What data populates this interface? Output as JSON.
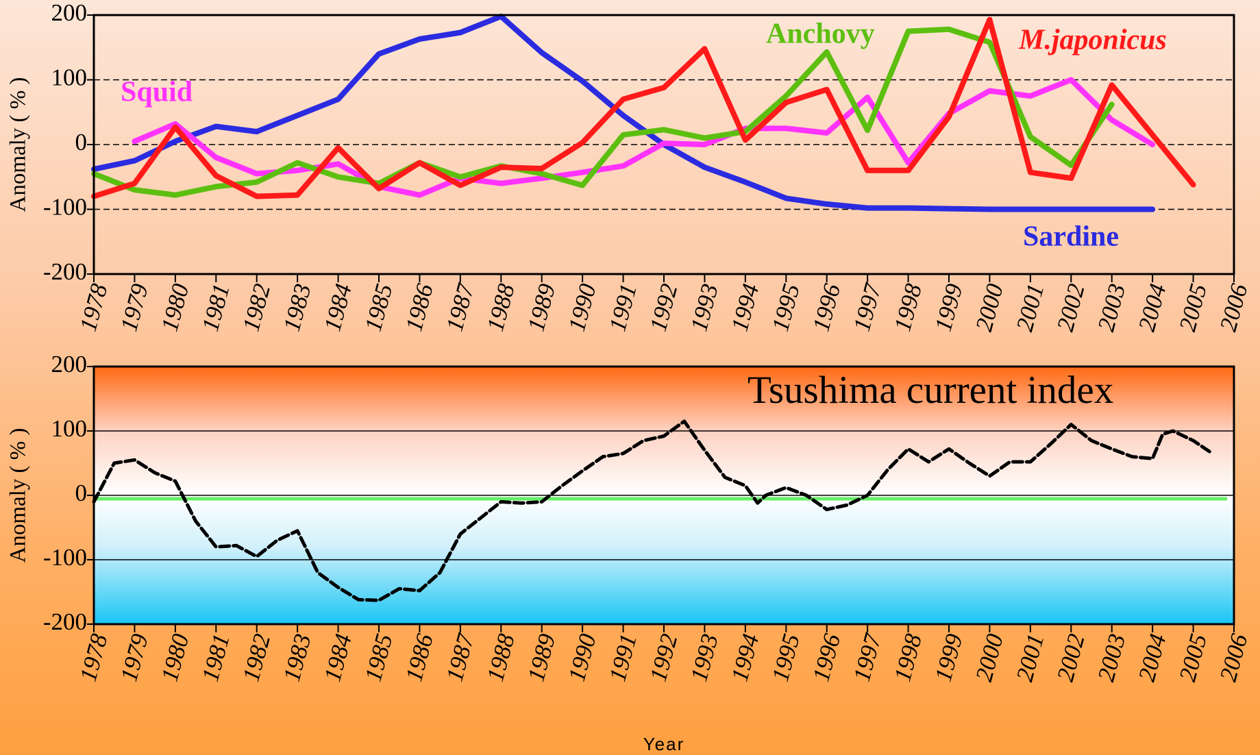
{
  "chart_data": [
    {
      "type": "line",
      "ylabel": "Anomaly ( % )",
      "x": [
        1978,
        1979,
        1980,
        1981,
        1982,
        1983,
        1984,
        1985,
        1986,
        1987,
        1988,
        1989,
        1990,
        1991,
        1992,
        1993,
        1994,
        1995,
        1996,
        1997,
        1998,
        1999,
        2000,
        2001,
        2002,
        2003,
        2004,
        2005
      ],
      "series": [
        {
          "name": "Sardine",
          "color": "#2b2be0",
          "values": [
            -38,
            -25,
            5,
            28,
            20,
            45,
            70,
            140,
            163,
            173,
            198,
            142,
            98,
            45,
            0,
            -35,
            -58,
            -83,
            -92,
            -98,
            -98,
            -99,
            -100,
            -100,
            -100,
            -100,
            -100,
            null
          ]
        },
        {
          "name": "Squid",
          "color": "#ff33ff",
          "values": [
            null,
            5,
            32,
            -20,
            -45,
            -40,
            -30,
            -65,
            -78,
            -52,
            -60,
            -52,
            -43,
            -33,
            2,
            0,
            25,
            25,
            18,
            73,
            -28,
            48,
            83,
            75,
            100,
            38,
            0,
            null
          ]
        },
        {
          "name": "Anchovy",
          "color": "#5cbf10",
          "values": [
            -45,
            -70,
            -78,
            -65,
            -58,
            -28,
            -50,
            -60,
            -28,
            -50,
            -33,
            -45,
            -63,
            15,
            23,
            10,
            20,
            75,
            143,
            22,
            175,
            178,
            158,
            12,
            -32,
            62,
            null,
            null
          ]
        },
        {
          "name": "M.japonicus",
          "color": "#ff1a1a",
          "values": [
            -80,
            -60,
            27,
            -48,
            -80,
            -78,
            -5,
            -68,
            -28,
            -63,
            -35,
            -37,
            3,
            70,
            88,
            148,
            7,
            65,
            85,
            -40,
            -40,
            43,
            193,
            -43,
            -52,
            92,
            15,
            -62
          ]
        }
      ],
      "xlim": [
        1978,
        2006
      ],
      "xticks": [
        1978,
        1979,
        1980,
        1981,
        1982,
        1983,
        1984,
        1985,
        1986,
        1987,
        1988,
        1989,
        1990,
        1991,
        1992,
        1993,
        1994,
        1995,
        1996,
        1997,
        1998,
        1999,
        2000,
        2001,
        2002,
        2003,
        2004,
        2005,
        2006
      ],
      "ylim": [
        -200,
        200
      ],
      "yticks": [
        -200,
        -100,
        0,
        100,
        200
      ],
      "grid": true,
      "grid_style": "dashed"
    },
    {
      "type": "line",
      "title": "Tsushima current index",
      "ylabel": "Anomaly ( % )",
      "xlabel": "Year",
      "x": [
        1978,
        1978.5,
        1979,
        1979.5,
        1980,
        1980.5,
        1981,
        1981.5,
        1982,
        1982.5,
        1983,
        1983.5,
        1984,
        1984.5,
        1985,
        1985.5,
        1986,
        1986.5,
        1987,
        1987.5,
        1988,
        1988.5,
        1989,
        1989.5,
        1990,
        1990.5,
        1991,
        1991.5,
        1992,
        1992.5,
        1993,
        1993.5,
        1994,
        1994.3,
        1994.5,
        1995,
        1995.5,
        1996,
        1996.5,
        1997,
        1997.5,
        1998,
        1998.5,
        1999,
        1999.5,
        2000,
        2000.5,
        2001,
        2001.5,
        2002,
        2002.5,
        2003,
        2003.5,
        2004,
        2004.25,
        2004.5,
        2005,
        2005.4
      ],
      "series": [
        {
          "name": null,
          "color": "#000000",
          "line_style": "dashed",
          "values": [
            -10,
            50,
            55,
            35,
            22,
            -40,
            -80,
            -78,
            -95,
            -70,
            -55,
            -120,
            -143,
            -162,
            -163,
            -145,
            -148,
            -120,
            -60,
            -35,
            -10,
            -12,
            -10,
            15,
            38,
            60,
            65,
            85,
            92,
            115,
            70,
            28,
            15,
            -12,
            0,
            12,
            0,
            -22,
            -15,
            0,
            40,
            72,
            52,
            72,
            50,
            30,
            52,
            52,
            80,
            110,
            85,
            72,
            60,
            57,
            95,
            100,
            85,
            68
          ]
        }
      ],
      "xlim": [
        1978,
        2006
      ],
      "xticks": [
        1978,
        1979,
        1980,
        1981,
        1982,
        1983,
        1984,
        1985,
        1986,
        1987,
        1988,
        1989,
        1990,
        1991,
        1992,
        1993,
        1994,
        1995,
        1996,
        1997,
        1998,
        1999,
        2000,
        2001,
        2002,
        2003,
        2004,
        2005,
        2006
      ],
      "ylim": [
        -200,
        200
      ],
      "yticks": [
        -200,
        -100,
        0,
        100,
        200
      ],
      "grid": true,
      "grid_style": "solid"
    }
  ]
}
